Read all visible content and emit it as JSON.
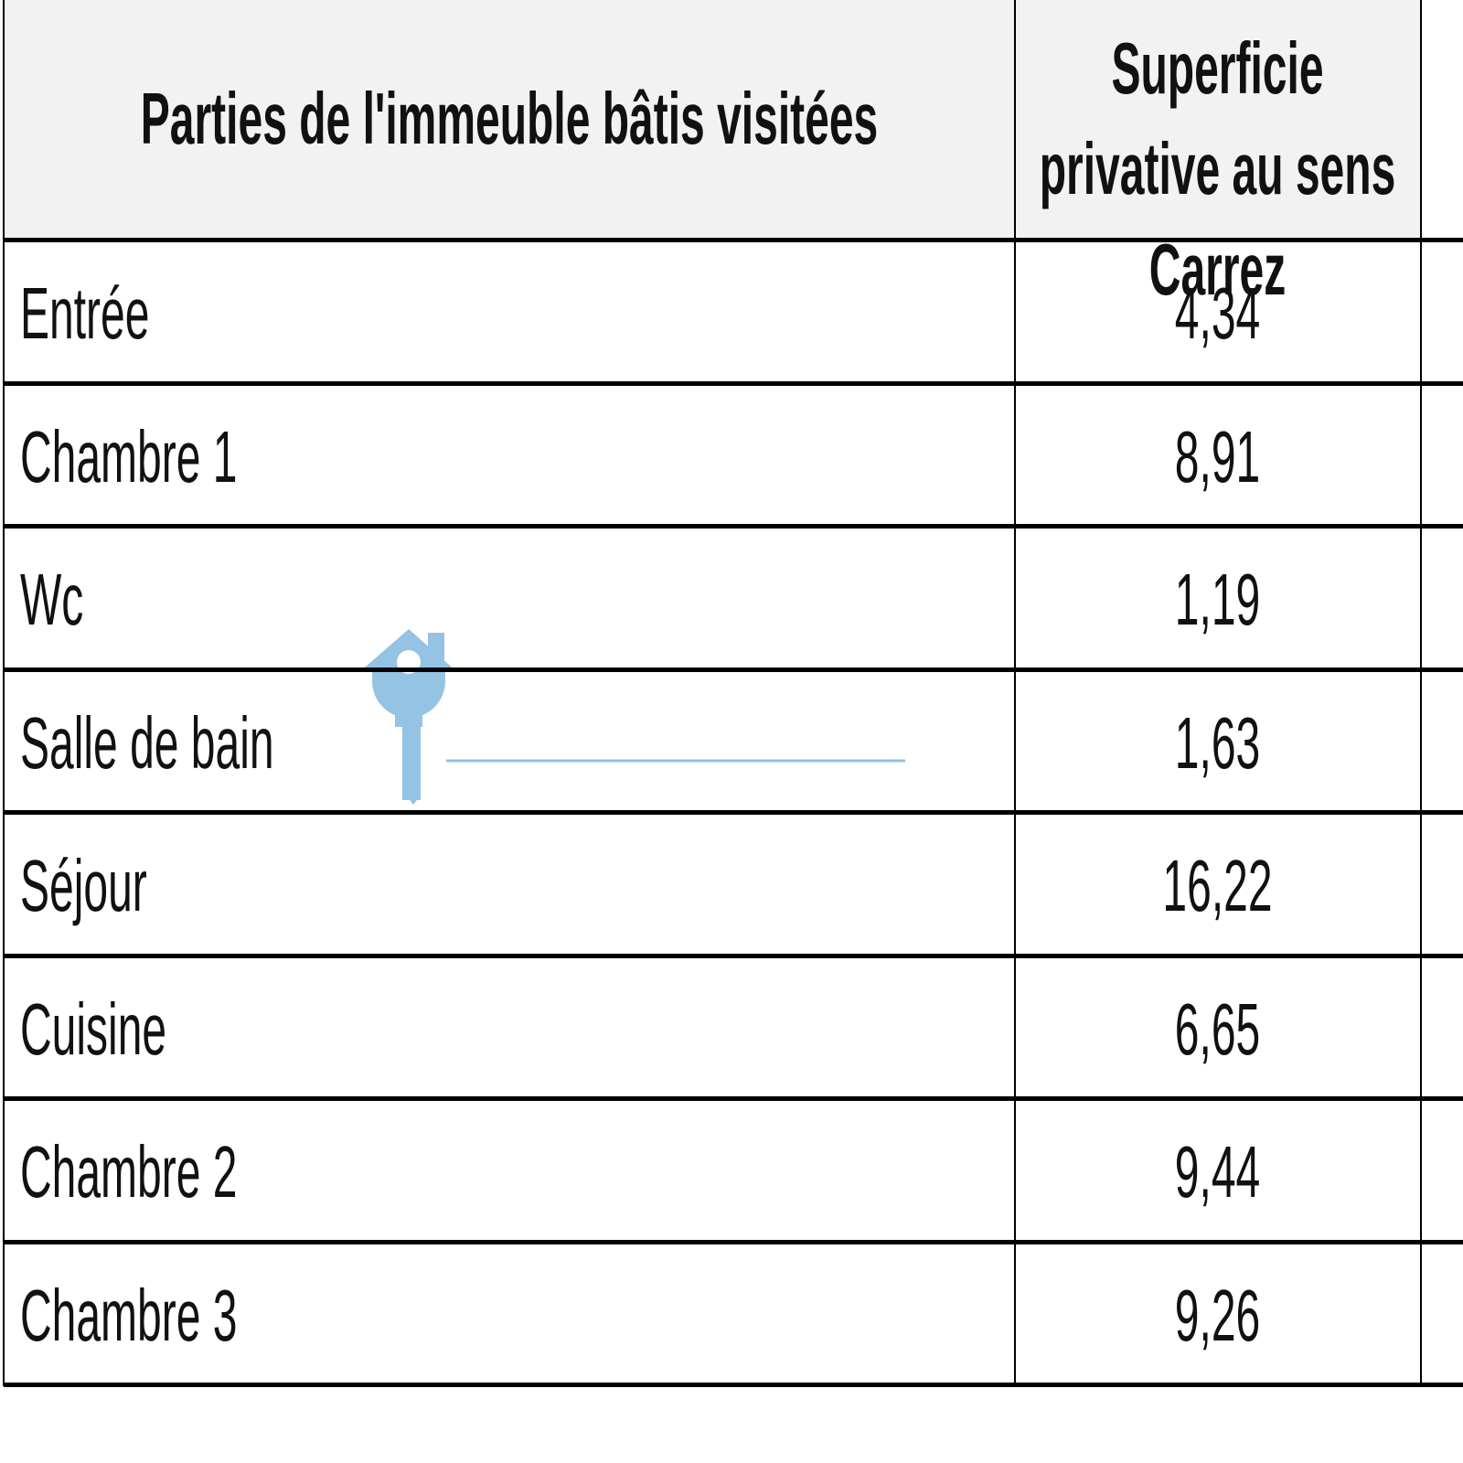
{
  "header": {
    "columns": [
      "Parties de l'immeuble bâtis visitées",
      "Superficie privative au sens Carrez"
    ]
  },
  "table": {
    "rows": [
      [
        "Entrée",
        "4,34"
      ],
      [
        "Chambre 1",
        "8,91"
      ],
      [
        "Wc",
        "1,19"
      ],
      [
        "Salle de bain",
        "1,63"
      ],
      [
        "Séjour",
        "16,22"
      ],
      [
        "Cuisine",
        "6,65"
      ],
      [
        "Chambre 2",
        "9,44"
      ],
      [
        "Chambre 3",
        "9,26"
      ]
    ]
  }
}
